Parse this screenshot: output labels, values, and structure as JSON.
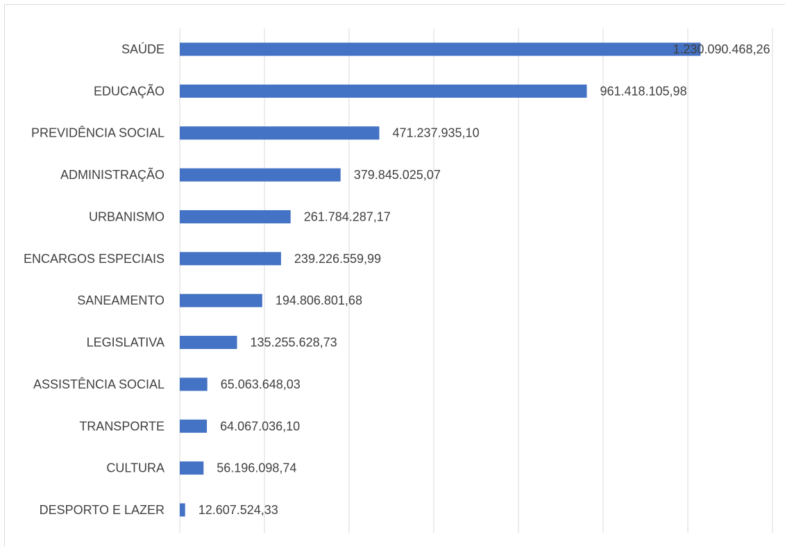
{
  "chart_data": {
    "type": "bar",
    "orientation": "horizontal",
    "title": "",
    "xlabel": "",
    "ylabel": "",
    "categories": [
      "SAÚDE",
      "EDUCAÇÃO",
      "PREVIDÊNCIA SOCIAL",
      "ADMINISTRAÇÃO",
      "URBANISMO",
      "ENCARGOS ESPECIAIS",
      "SANEAMENTO",
      "LEGISLATIVA",
      "ASSISTÊNCIA SOCIAL",
      "TRANSPORTE",
      "CULTURA",
      "DESPORTO E LAZER"
    ],
    "values": [
      1230090468.26,
      961418105.98,
      471237935.1,
      379845025.07,
      261784287.17,
      239226559.99,
      194806801.68,
      135255628.73,
      65063648.03,
      64067036.1,
      56196098.74,
      12607524.33
    ],
    "value_labels": [
      "1.230.090.468,26",
      "961.418.105,98",
      "471.237.935,10",
      "379.845.025,07",
      "261.784.287,17",
      "239.226.559,99",
      "194.806.801,68",
      "135.255.628,73",
      "65.063.648,03",
      "64.067.036,10",
      "56.196.098,74",
      "12.607.524,33"
    ],
    "xlim": [
      0,
      1400000000
    ],
    "gridlines": [
      0,
      200000000,
      400000000,
      600000000,
      800000000,
      1000000000,
      1200000000,
      1400000000
    ],
    "grid": true,
    "legend": "none",
    "bar_color": "#4472c4",
    "grid_color": "#d9d9d9"
  }
}
